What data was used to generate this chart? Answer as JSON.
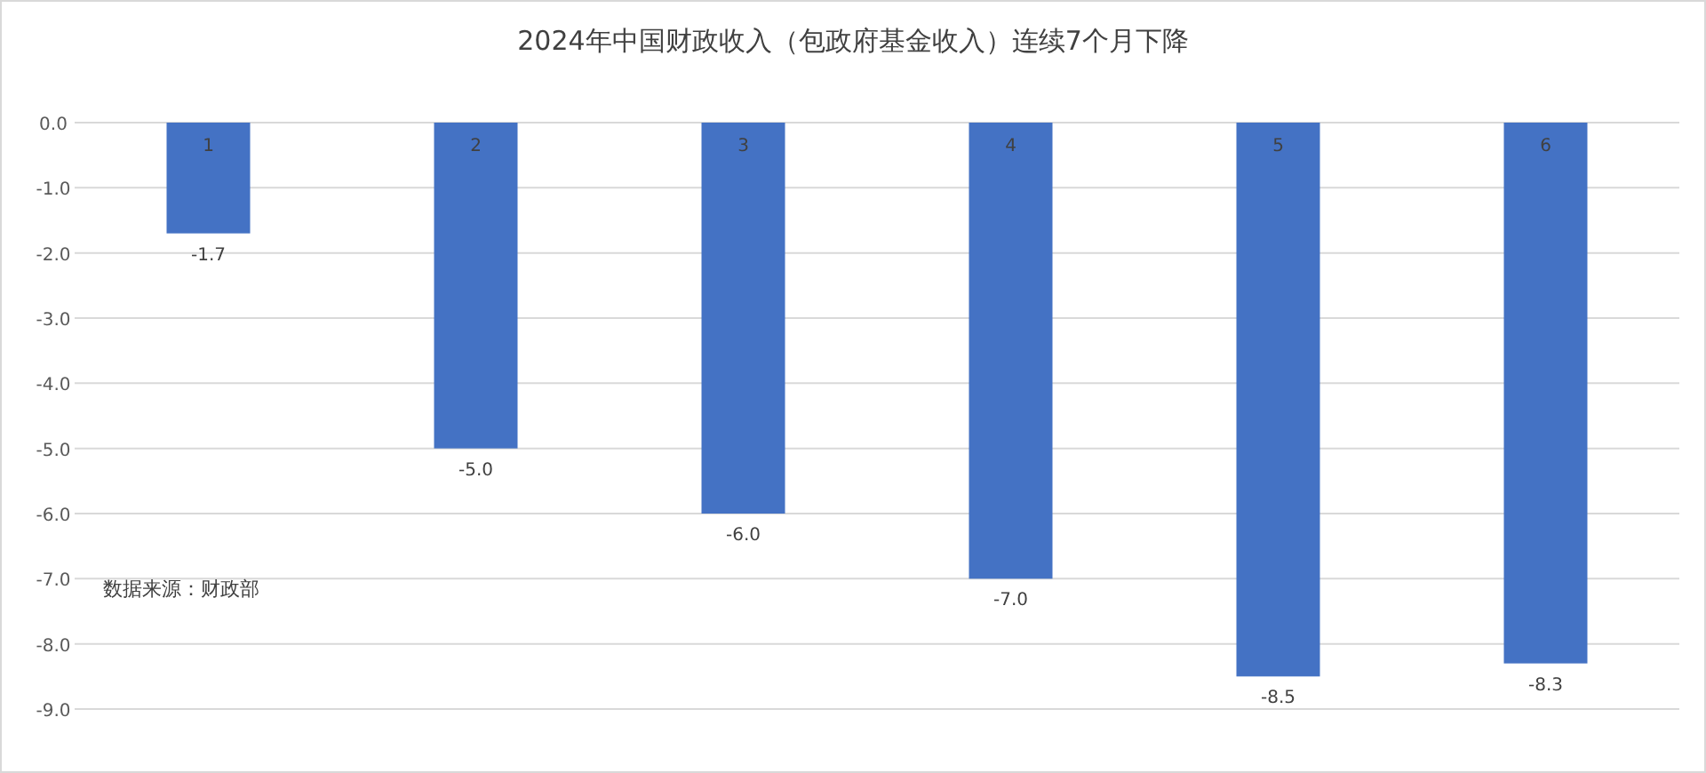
{
  "chart_data": {
    "type": "bar",
    "title": "2024年中国财政收入（包政府基金收入）连续7个月下降",
    "categories": [
      "1",
      "2",
      "3",
      "4",
      "5",
      "6"
    ],
    "values": [
      -1.7,
      -5.0,
      -6.0,
      -7.0,
      -8.5,
      -8.3
    ],
    "color": "#4472c4",
    "ylim": [
      -9,
      0
    ],
    "yticks": [
      {
        "value": 0,
        "label": "0.0"
      },
      {
        "value": -1,
        "label": "-1.0"
      },
      {
        "value": -2,
        "label": "-2.0"
      },
      {
        "value": -3,
        "label": "-3.0"
      },
      {
        "value": -4,
        "label": "-4.0"
      },
      {
        "value": -5,
        "label": "-5.0"
      },
      {
        "value": -6,
        "label": "-6.0"
      },
      {
        "value": -7,
        "label": "-7.0"
      },
      {
        "value": -8,
        "label": "-8.0"
      },
      {
        "value": -9,
        "label": "-9.0"
      }
    ],
    "grid": "y",
    "value_labels": [
      "-1.7",
      "-5.0",
      "-6.0",
      "-7.0",
      "-8.5",
      "-8.3"
    ],
    "annotations": [
      "数据来源：财政部"
    ]
  }
}
